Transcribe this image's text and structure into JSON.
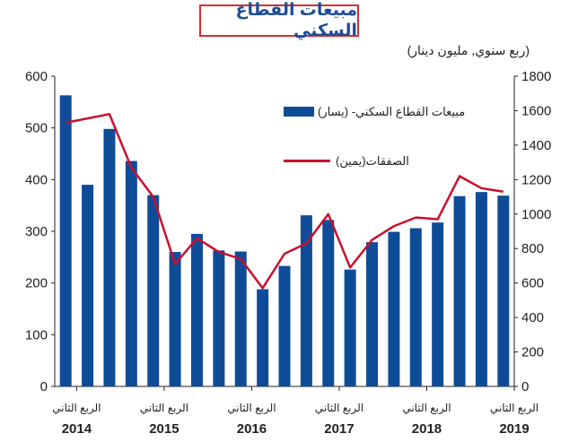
{
  "chart_data": {
    "type": "bar+line",
    "title": "مبيعات القطاع السكني",
    "subtitle": "(ربع سنوي, مليون دينار)",
    "legend": {
      "bars": "مبيعات القطاع السكني- (يسار)",
      "line": "الصفقات(يمين)"
    },
    "left_axis": {
      "min": 0,
      "max": 600,
      "ticks": [
        "0",
        "100",
        "200",
        "300",
        "400",
        "500",
        "600"
      ]
    },
    "right_axis": {
      "min": 0,
      "max": 1800,
      "ticks": [
        "0",
        "200",
        "400",
        "600",
        "800",
        "1000",
        "1200",
        "1400",
        "1600",
        "1800"
      ]
    },
    "x_tick_label": "الربع الثاني",
    "years": [
      "2014",
      "2015",
      "2016",
      "2017",
      "2018",
      "2019"
    ],
    "bars": [
      {
        "name": "Q1 2014",
        "value": 563
      },
      {
        "name": "Q2 2014",
        "value": 390
      },
      {
        "name": "Q3 2014",
        "value": 498
      },
      {
        "name": "Q4 2014",
        "value": 436
      },
      {
        "name": "Q1 2015",
        "value": 370
      },
      {
        "name": "Q2 2015",
        "value": 260
      },
      {
        "name": "Q3 2015",
        "value": 295
      },
      {
        "name": "Q4 2015",
        "value": 263
      },
      {
        "name": "Q1 2016",
        "value": 261
      },
      {
        "name": "Q2 2016",
        "value": 188
      },
      {
        "name": "Q3 2016",
        "value": 233
      },
      {
        "name": "Q4 2016",
        "value": 331
      },
      {
        "name": "Q1 2017",
        "value": 322
      },
      {
        "name": "Q2 2017",
        "value": 226
      },
      {
        "name": "Q3 2017",
        "value": 279
      },
      {
        "name": "Q4 2017",
        "value": 299
      },
      {
        "name": "Q1 2018",
        "value": 306
      },
      {
        "name": "Q2 2018",
        "value": 317
      },
      {
        "name": "Q3 2018",
        "value": 368
      },
      {
        "name": "Q4 2018",
        "value": 376
      },
      {
        "name": "Q1 2019",
        "value": 369
      }
    ],
    "line": [
      {
        "name": "Q1 2014",
        "value": 1530
      },
      {
        "name": "Q3 2014",
        "value": 1580
      },
      {
        "name": "Q4 2014",
        "value": 1270
      },
      {
        "name": "Q1 2015",
        "value": 1100
      },
      {
        "name": "Q2 2015",
        "value": 710
      },
      {
        "name": "Q3 2015",
        "value": 860
      },
      {
        "name": "Q4 2015",
        "value": 780
      },
      {
        "name": "Q1 2016",
        "value": 740
      },
      {
        "name": "Q2 2016",
        "value": 570
      },
      {
        "name": "Q3 2016",
        "value": 770
      },
      {
        "name": "Q4 2016",
        "value": 830
      },
      {
        "name": "Q1 2017",
        "value": 1000
      },
      {
        "name": "Q2 2017",
        "value": 690
      },
      {
        "name": "Q3 2017",
        "value": 850
      },
      {
        "name": "Q4 2017",
        "value": 930
      },
      {
        "name": "Q1 2018",
        "value": 980
      },
      {
        "name": "Q2 2018",
        "value": 970
      },
      {
        "name": "Q3 2018",
        "value": 1220
      },
      {
        "name": "Q4 2018",
        "value": 1150
      },
      {
        "name": "Q1 2019",
        "value": 1130
      }
    ],
    "colors": {
      "bars": "#0f4c97",
      "line": "#c8102e",
      "title_border": "#d32f2f",
      "title_text": "#1f4e96"
    }
  }
}
